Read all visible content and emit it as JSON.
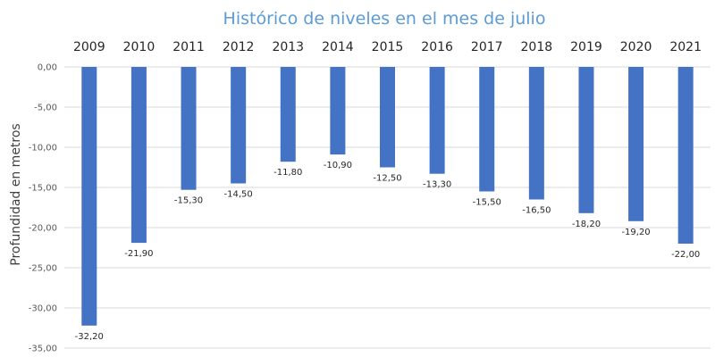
{
  "chart_data": {
    "type": "bar",
    "title": "Histórico de niveles en el mes de julio",
    "xlabel": "",
    "ylabel": "Profundidad en metros",
    "categories": [
      "2009",
      "2010",
      "2011",
      "2012",
      "2013",
      "2014",
      "2015",
      "2016",
      "2017",
      "2018",
      "2019",
      "2020",
      "2021"
    ],
    "values": [
      -32.2,
      -21.9,
      -15.3,
      -14.5,
      -11.8,
      -10.9,
      -12.5,
      -13.3,
      -15.5,
      -16.5,
      -18.2,
      -19.2,
      -22.0
    ],
    "data_labels": [
      "-32,20",
      "-21,90",
      "-15,30",
      "-14,50",
      "-11,80",
      "-10,90",
      "-12,50",
      "-13,30",
      "-15,50",
      "-16,50",
      "-18,20",
      "-19,20",
      "-22,00"
    ],
    "yticks": [
      0,
      -5,
      -10,
      -15,
      -20,
      -25,
      -30,
      -35
    ],
    "ytick_labels": [
      "0,00",
      "-5,00",
      "-10,00",
      "-15,00",
      "-20,00",
      "-25,00",
      "-30,00",
      "-35,00"
    ],
    "ylim": [
      -35,
      0
    ],
    "grid": true,
    "legend": "none",
    "category_axis_position": "top",
    "bar_color": "#4472c4",
    "title_color": "#5b9bd5",
    "grid_color": "#d9d9d9"
  }
}
